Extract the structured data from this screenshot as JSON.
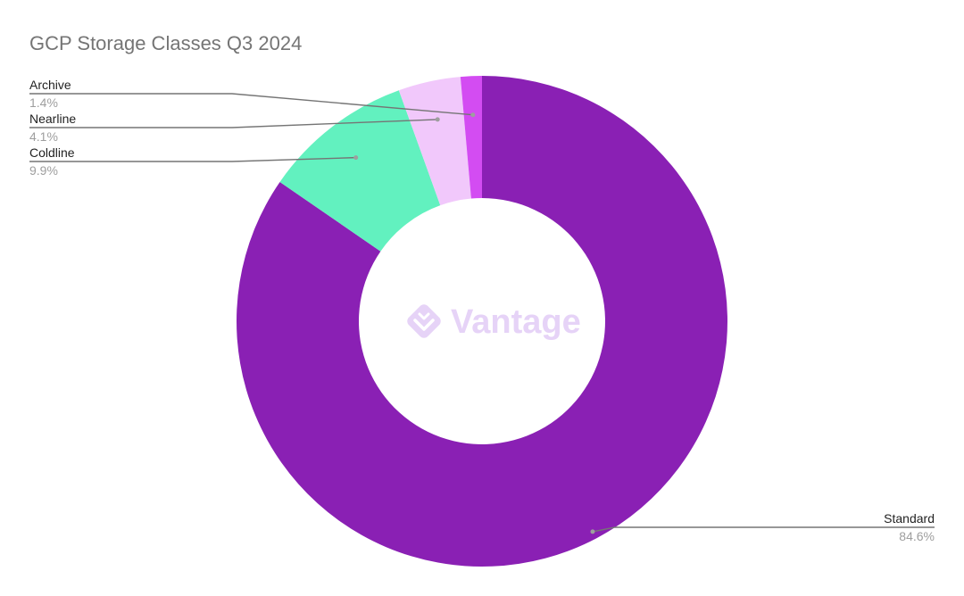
{
  "chart_data": {
    "type": "pie",
    "title": "GCP Storage Classes Q3 2024",
    "donut": true,
    "legend": "none",
    "slices": [
      {
        "name": "Standard",
        "value": 84.6,
        "label": "84.6%",
        "color": "#8a20b4"
      },
      {
        "name": "Coldline",
        "value": 9.9,
        "label": "9.9%",
        "color": "#62f1bf"
      },
      {
        "name": "Nearline",
        "value": 4.1,
        "label": "4.1%",
        "color": "#f1c8fb"
      },
      {
        "name": "Archive",
        "value": 1.4,
        "label": "1.4%",
        "color": "#d34cf2"
      }
    ]
  },
  "watermark": {
    "text": "Vantage",
    "icon": "vantage-logo-icon",
    "color": "#e6d3f7"
  }
}
